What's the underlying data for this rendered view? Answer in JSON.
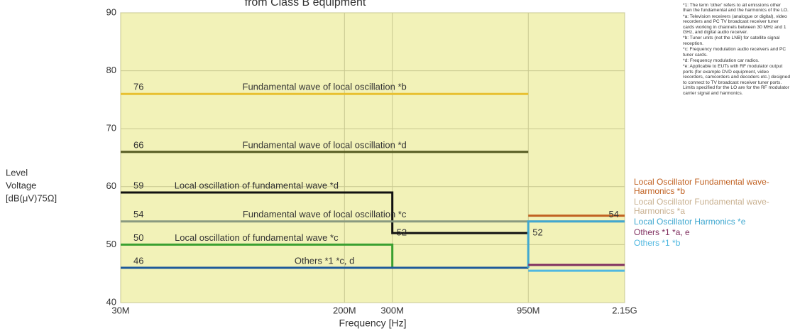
{
  "chart_data": {
    "type": "line",
    "title": "from Class B equipment",
    "ylabel": [
      "Level",
      "Voltage",
      "[dB(μV)75Ω]"
    ],
    "xlabel": "Frequency [Hz]",
    "xscale": "log",
    "xlim": [
      30,
      2150
    ],
    "xticks": [
      {
        "value": 30,
        "label": "30M"
      },
      {
        "value": 200,
        "label": "200M"
      },
      {
        "value": 300,
        "label": "300M"
      },
      {
        "value": 950,
        "label": "950M"
      },
      {
        "value": 2150,
        "label": "2.15G"
      }
    ],
    "ylim": [
      40,
      90
    ],
    "yticks": [
      40,
      50,
      60,
      70,
      80,
      90
    ],
    "grid": true,
    "series": [
      {
        "name": "Fundamental wave of local oscillation *b",
        "color": "#e8c030",
        "placement": "inline",
        "x": [
          30,
          950
        ],
        "values": [
          76,
          76
        ],
        "value_labels": [
          "76",
          null
        ]
      },
      {
        "name": "Fundamental wave of local oscillation *d",
        "color": "#555a20",
        "placement": "inline",
        "x": [
          30,
          950
        ],
        "values": [
          66,
          66
        ],
        "value_labels": [
          "66",
          null
        ]
      },
      {
        "name": "Local oscillation of fundamental wave *d",
        "color": "#111111",
        "placement": "inline",
        "x": [
          30,
          300,
          300,
          950
        ],
        "values": [
          59,
          59,
          52,
          52
        ],
        "value_labels": [
          "59",
          null,
          "52",
          "52"
        ]
      },
      {
        "name": "Fundamental wave of local oscillation *c",
        "color": "#8a9a80",
        "placement": "inline",
        "x": [
          30,
          950
        ],
        "values": [
          54,
          54
        ],
        "value_labels": [
          "54",
          null
        ]
      },
      {
        "name": "Local oscillation of fundamental wave *c",
        "color": "#3aa030",
        "placement": "inline",
        "x": [
          30,
          300,
          300
        ],
        "values": [
          50,
          50,
          46
        ],
        "value_labels": [
          "50",
          null,
          null
        ]
      },
      {
        "name": "Others *1 *c, d",
        "color": "#1e5a9a",
        "placement": "inline",
        "x": [
          30,
          950
        ],
        "values": [
          46,
          46
        ],
        "value_labels": [
          "46",
          null
        ]
      },
      {
        "name": "Local Oscillator Fundamental wave-Harmonics *b",
        "color": "#c06020",
        "placement": "right",
        "x": [
          950,
          2150
        ],
        "values": [
          55,
          55
        ],
        "value_labels": [
          null,
          null
        ]
      },
      {
        "name": "Local Oscillator Fundamental wave-Harmonics *a",
        "color": "#c8b090",
        "placement": "right",
        "x": [
          950,
          2150
        ],
        "values": [
          54,
          54
        ],
        "value_labels": [
          null,
          "54"
        ]
      },
      {
        "name": "Local Oscillator Harmonics *e",
        "color": "#40a8d0",
        "placement": "right",
        "x": [
          950,
          950,
          2150
        ],
        "values": [
          46,
          54,
          54
        ],
        "value_labels": [
          null,
          null,
          null
        ]
      },
      {
        "name": "Others *1 *a, e",
        "color": "#803060",
        "placement": "right",
        "x": [
          950,
          2150
        ],
        "values": [
          46.5,
          46.5
        ],
        "value_labels": [
          null,
          null
        ]
      },
      {
        "name": "Others *1 *b",
        "color": "#50b8e0",
        "placement": "right",
        "x": [
          950,
          2150
        ],
        "values": [
          45.5,
          45.5
        ],
        "value_labels": [
          null,
          null
        ]
      }
    ],
    "footnotes": [
      "*1: The term 'other' refers to all emissions other than the fundamental and the harmonics of the LO.",
      "*a: Television receivers (analogue or digital), video recorders and PC TV broadcast receiver tuner cards working in channels between 30 MHz and 1 GHz, and digital audio receiver.",
      "*b: Tuner units (not the LNB) for satellite signal reception.",
      "*c: Frequency modulation audio receivers and PC tuner cards.",
      "*d: Frequency modulation car radios.",
      "*e: Applicable to EUTs with RF modulator output ports (for example DVD equipment, video recorders, camcorders and decoders etc.) designed to connect to TV broadcast receiver tuner ports. Limits specified for the LO are for the RF modulator carrier signal and harmonics."
    ]
  }
}
